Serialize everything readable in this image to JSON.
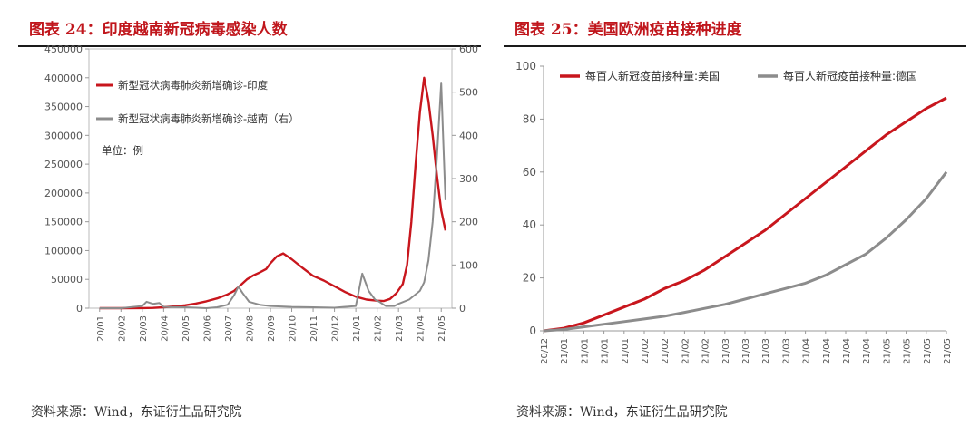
{
  "left": {
    "title": "图表 24：印度越南新冠病毒感染人数",
    "source": "资料来源：Wind，东证衍生品研究院",
    "unit_note": "单位：例"
  },
  "right": {
    "title": "图表 25：美国欧洲疫苗接种进度",
    "source": "资料来源：Wind，东证衍生品研究院"
  },
  "colors": {
    "red": "#c8161d",
    "gray": "#8c8c8c",
    "title_red": "#c0161c"
  },
  "chart_data": [
    {
      "type": "line",
      "title": "图表 24：印度越南新冠病毒感染人数",
      "unit": "单位：例",
      "ylim": [
        0,
        450000
      ],
      "yticks": [
        "0",
        "50000",
        "100000",
        "150000",
        "200000",
        "250000",
        "300000",
        "350000",
        "400000",
        "450000"
      ],
      "y2lim": [
        0,
        600
      ],
      "y2ticks": [
        "0",
        "100",
        "200",
        "300",
        "400",
        "500",
        "600"
      ],
      "xticks": [
        "20/01",
        "20/02",
        "20/03",
        "20/04",
        "20/05",
        "20/06",
        "20/07",
        "20/08",
        "20/09",
        "20/10",
        "20/11",
        "20/12",
        "21/01",
        "21/02",
        "21/03",
        "21/04",
        "21/05"
      ],
      "legend_position": "top-left",
      "series": [
        {
          "name": "新型冠状病毒肺炎新增确诊-印度",
          "axis": "left",
          "color": "#c8161d",
          "x": [
            0,
            1,
            2,
            2.5,
            3,
            3.5,
            4,
            4.5,
            5,
            5.5,
            6,
            6.3,
            6.6,
            6.9,
            7.2,
            7.5,
            7.8,
            8.0,
            8.3,
            8.6,
            9.0,
            9.5,
            10.0,
            10.5,
            11.0,
            11.5,
            12.0,
            12.5,
            13.0,
            13.3,
            13.6,
            13.9,
            14.2,
            14.4,
            14.6,
            14.8,
            15.0,
            15.2,
            15.4,
            15.6,
            15.8,
            16.0,
            16.2
          ],
          "values": [
            0,
            0,
            100,
            500,
            1500,
            3000,
            5000,
            8000,
            12000,
            17000,
            24000,
            30000,
            40000,
            50000,
            57000,
            62000,
            68000,
            78000,
            90000,
            95000,
            85000,
            70000,
            56000,
            48000,
            38000,
            28000,
            20000,
            15000,
            13000,
            12500,
            16000,
            26000,
            42000,
            75000,
            150000,
            250000,
            340000,
            400000,
            360000,
            300000,
            230000,
            170000,
            135000
          ]
        },
        {
          "name": "新型冠状病毒肺炎新增确诊-越南（右）",
          "axis": "right",
          "color": "#8c8c8c",
          "x": [
            0,
            1,
            2,
            2.2,
            2.5,
            2.8,
            3,
            4,
            4.5,
            5,
            5.5,
            6,
            6.3,
            6.5,
            6.7,
            7,
            7.5,
            8,
            9,
            10,
            11,
            12,
            12.3,
            12.6,
            12.9,
            13.1,
            13.4,
            13.8,
            14,
            14.5,
            15,
            15.2,
            15.4,
            15.6,
            15.8,
            16.0,
            16.1,
            16.2
          ],
          "values": [
            0,
            0,
            5,
            15,
            10,
            12,
            3,
            2,
            1,
            0,
            2,
            8,
            30,
            50,
            35,
            15,
            8,
            5,
            3,
            2,
            1,
            5,
            80,
            40,
            20,
            15,
            5,
            5,
            10,
            20,
            40,
            60,
            110,
            200,
            350,
            520,
            380,
            250
          ]
        }
      ]
    },
    {
      "type": "line",
      "title": "图表 25：美国欧洲疫苗接种进度",
      "ylim": [
        0,
        100
      ],
      "yticks": [
        "0",
        "20",
        "40",
        "60",
        "80",
        "100"
      ],
      "xticks": [
        "20/12",
        "21/01",
        "21/01",
        "21/01",
        "21/01",
        "21/02",
        "21/02",
        "21/02",
        "21/02",
        "21/03",
        "21/03",
        "21/03",
        "21/03",
        "21/04",
        "21/04",
        "21/04",
        "21/04",
        "21/05",
        "21/05",
        "21/05",
        "21/05"
      ],
      "legend_position": "top-left",
      "series": [
        {
          "name": "每百人新冠疫苗接种量:美国",
          "color": "#c8161d",
          "x": [
            0,
            1,
            2,
            3,
            4,
            5,
            6,
            7,
            8,
            9,
            10,
            11,
            12,
            13,
            14,
            15,
            16,
            17,
            18,
            19,
            20
          ],
          "values": [
            0,
            1,
            3,
            6,
            9,
            12,
            16,
            19,
            23,
            28,
            33,
            38,
            44,
            50,
            56,
            62,
            68,
            74,
            79,
            84,
            88
          ]
        },
        {
          "name": "每百人新冠疫苗接种量:德国",
          "color": "#8c8c8c",
          "x": [
            0,
            1,
            2,
            3,
            4,
            5,
            6,
            7,
            8,
            9,
            10,
            11,
            12,
            13,
            14,
            15,
            16,
            17,
            18,
            19,
            20
          ],
          "values": [
            0,
            0.5,
            1.5,
            2.5,
            3.5,
            4.5,
            5.5,
            7,
            8.5,
            10,
            12,
            14,
            16,
            18,
            21,
            25,
            29,
            35,
            42,
            50,
            60
          ]
        }
      ]
    }
  ]
}
